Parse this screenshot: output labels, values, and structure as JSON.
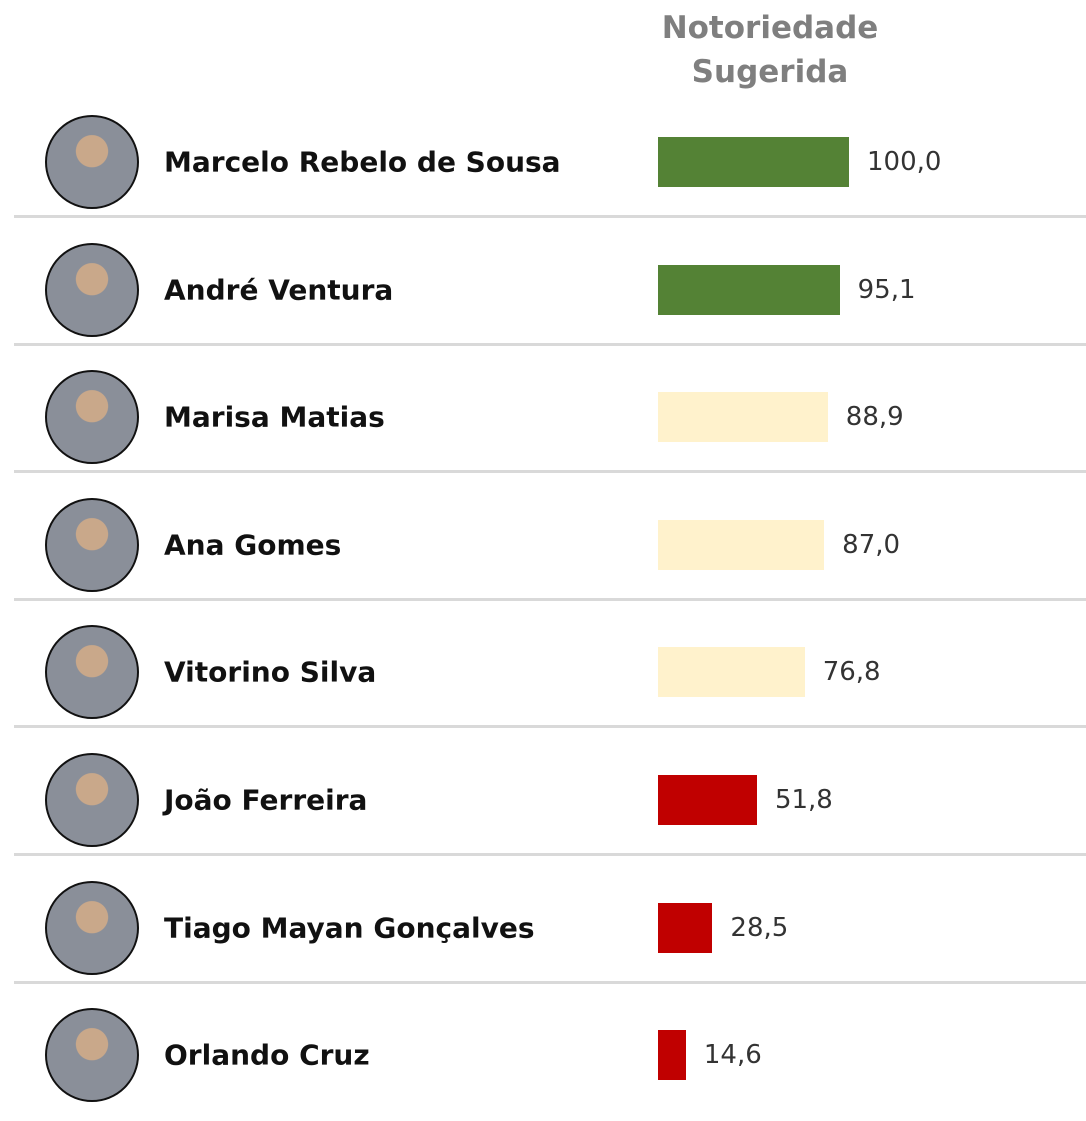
{
  "chart_data": {
    "type": "bar",
    "orientation": "horizontal",
    "title": "Notoriedade Sugerida",
    "categories": [
      "Marcelo Rebelo de Sousa",
      "André Ventura",
      "Marisa Matias",
      "Ana Gomes",
      "Vitorino Silva",
      "João Ferreira",
      "Tiago Mayan Gonçalves",
      "Orlando Cruz"
    ],
    "values": [
      100.0,
      95.1,
      88.9,
      87.0,
      76.8,
      51.8,
      28.5,
      14.6
    ],
    "value_labels": [
      "100,0",
      "95,1",
      "88,9",
      "87,0",
      "76,8",
      "51,8",
      "28,5",
      "14,6"
    ],
    "colors": [
      "#548235",
      "#548235",
      "#fff2cc",
      "#fff2cc",
      "#fff2cc",
      "#c00000",
      "#c00000",
      "#c00000"
    ]
  }
}
